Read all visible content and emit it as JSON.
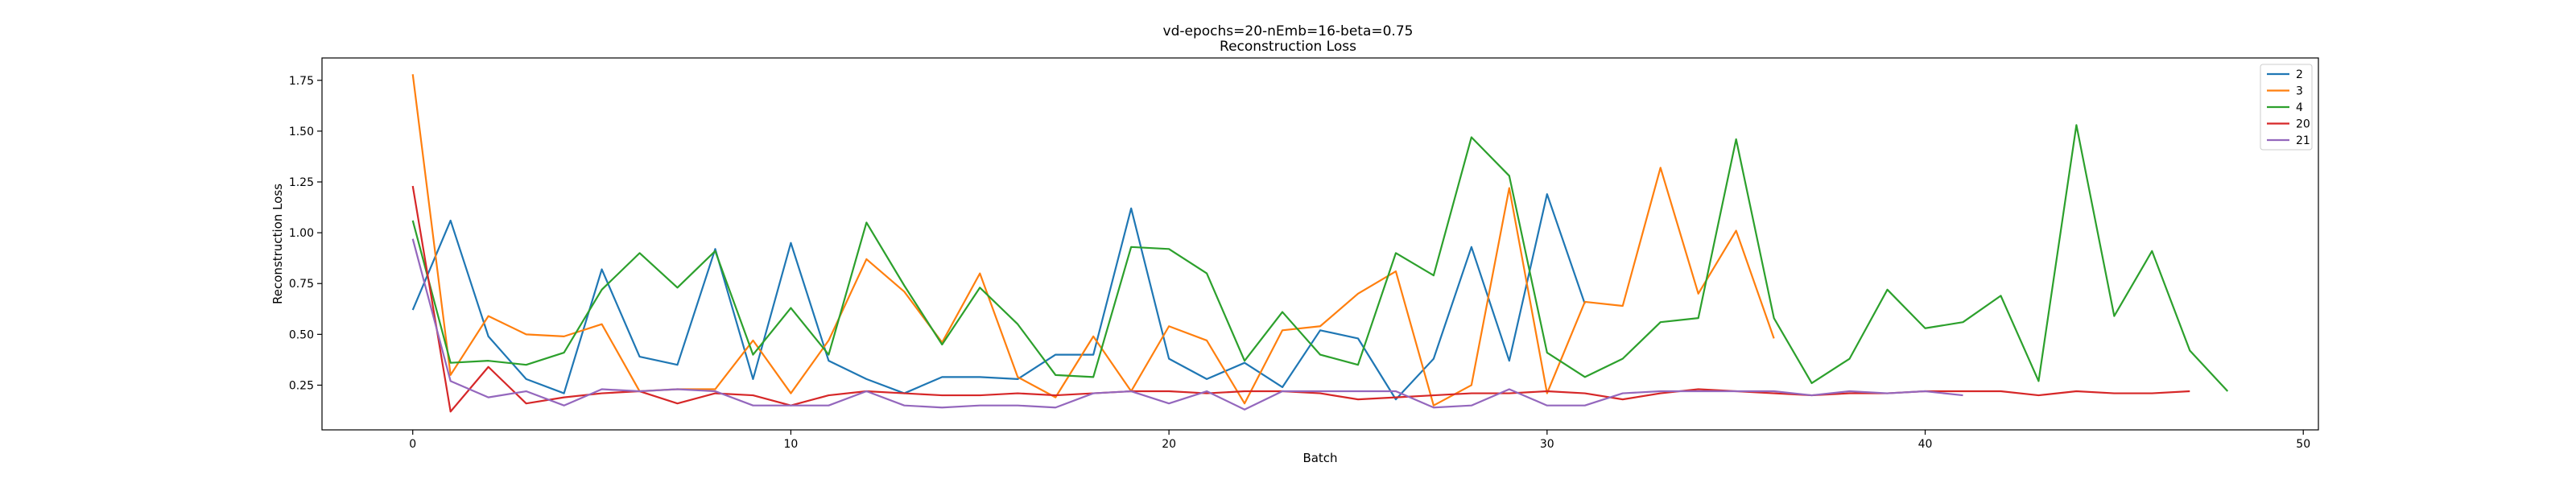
{
  "chart_data": {
    "type": "line",
    "title": "vd-epochs=20-nEmb=16-beta=0.75",
    "subtitle": "Reconstruction Loss",
    "xlabel": "Batch",
    "ylabel": "Reconstruction Loss",
    "xlim": [
      -2.4,
      50.4
    ],
    "ylim": [
      0.03,
      1.86
    ],
    "xticks": [
      0,
      10,
      20,
      30,
      40,
      50
    ],
    "yticks": [
      0.25,
      0.5,
      0.75,
      1.0,
      1.25,
      1.5,
      1.75
    ],
    "ytick_labels": [
      "0.25",
      "0.50",
      "0.75",
      "1.00",
      "1.25",
      "1.50",
      "1.75"
    ],
    "grid": false,
    "legend_position": "top-right",
    "series": [
      {
        "name": "2",
        "color": "#1f77b4",
        "values": [
          0.62,
          1.06,
          0.49,
          0.28,
          0.21,
          0.82,
          0.39,
          0.35,
          0.92,
          0.28,
          0.95,
          0.37,
          0.28,
          0.21,
          0.29,
          0.29,
          0.28,
          0.4,
          0.4,
          1.12,
          0.38,
          0.28,
          0.36,
          0.24,
          0.52,
          0.48,
          0.18,
          0.38,
          0.93,
          0.37,
          1.19,
          0.65
        ]
      },
      {
        "name": "3",
        "color": "#ff7f0e",
        "values": [
          1.78,
          0.3,
          0.59,
          0.5,
          0.49,
          0.55,
          0.22,
          0.23,
          0.23,
          0.47,
          0.21,
          0.47,
          0.87,
          0.71,
          0.46,
          0.8,
          0.29,
          0.19,
          0.49,
          0.22,
          0.54,
          0.47,
          0.16,
          0.52,
          0.54,
          0.7,
          0.81,
          0.15,
          0.25,
          1.22,
          0.21,
          0.66,
          0.64,
          1.32,
          0.7,
          1.01,
          0.48
        ]
      },
      {
        "name": "4",
        "color": "#2ca02c",
        "values": [
          1.06,
          0.36,
          0.37,
          0.35,
          0.41,
          0.72,
          0.9,
          0.73,
          0.91,
          0.4,
          0.63,
          0.4,
          1.05,
          0.74,
          0.45,
          0.73,
          0.55,
          0.3,
          0.29,
          0.93,
          0.92,
          0.8,
          0.37,
          0.61,
          0.4,
          0.35,
          0.9,
          0.79,
          1.47,
          1.28,
          0.41,
          0.29,
          0.38,
          0.56,
          0.58,
          1.46,
          0.58,
          0.26,
          0.38,
          0.72,
          0.53,
          0.56,
          0.69,
          0.27,
          1.53,
          0.59,
          0.91,
          0.42,
          0.22
        ]
      },
      {
        "name": "20",
        "color": "#d62728",
        "values": [
          1.23,
          0.12,
          0.34,
          0.16,
          0.19,
          0.21,
          0.22,
          0.16,
          0.21,
          0.2,
          0.15,
          0.2,
          0.22,
          0.21,
          0.2,
          0.2,
          0.21,
          0.2,
          0.21,
          0.22,
          0.22,
          0.21,
          0.22,
          0.22,
          0.21,
          0.18,
          0.19,
          0.2,
          0.21,
          0.21,
          0.22,
          0.21,
          0.18,
          0.21,
          0.23,
          0.22,
          0.21,
          0.2,
          0.21,
          0.21,
          0.22,
          0.22,
          0.22,
          0.2,
          0.22,
          0.21,
          0.21,
          0.22
        ]
      },
      {
        "name": "21",
        "color": "#9467bd",
        "values": [
          0.97,
          0.27,
          0.19,
          0.22,
          0.15,
          0.23,
          0.22,
          0.23,
          0.22,
          0.15,
          0.15,
          0.15,
          0.22,
          0.15,
          0.14,
          0.15,
          0.15,
          0.14,
          0.21,
          0.22,
          0.16,
          0.22,
          0.13,
          0.22,
          0.22,
          0.22,
          0.22,
          0.14,
          0.15,
          0.23,
          0.15,
          0.15,
          0.21,
          0.22,
          0.22,
          0.22,
          0.22,
          0.2,
          0.22,
          0.21,
          0.22,
          0.2
        ]
      }
    ]
  }
}
